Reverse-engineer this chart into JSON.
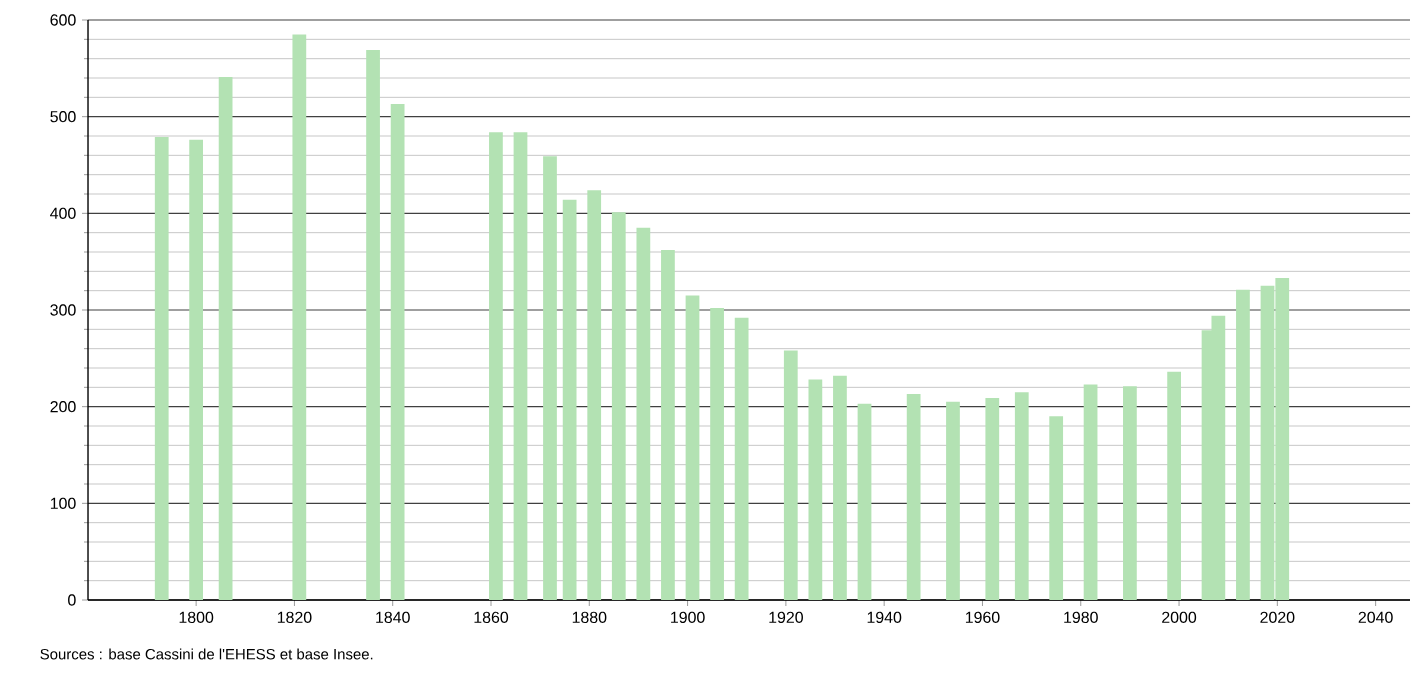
{
  "chart_data": {
    "type": "bar",
    "color": "#b3e2b3",
    "x": [
      1793,
      1800,
      1806,
      1821,
      1836,
      1841,
      1861,
      1866,
      1872,
      1876,
      1881,
      1886,
      1891,
      1896,
      1901,
      1906,
      1911,
      1921,
      1926,
      1931,
      1936,
      1946,
      1954,
      1962,
      1968,
      1975,
      1982,
      1990,
      1999,
      2006,
      2008,
      2013,
      2018,
      2021
    ],
    "values": [
      479,
      476,
      541,
      585,
      569,
      513,
      484,
      484,
      459,
      414,
      424,
      401,
      385,
      362,
      315,
      302,
      292,
      258,
      228,
      232,
      203,
      213,
      205,
      209,
      215,
      190,
      223,
      221,
      236,
      279,
      294,
      321,
      325,
      333
    ],
    "xlim": [
      1778,
      2047
    ],
    "xticks": [
      1800,
      1820,
      1840,
      1860,
      1880,
      1900,
      1920,
      1940,
      1960,
      1980,
      2000,
      2020,
      2040
    ],
    "ylim": [
      0,
      600
    ],
    "yticks": [
      0,
      100,
      200,
      300,
      400,
      500,
      600
    ],
    "grid": true,
    "annotations": [
      "Sources : base Cassini de l'EHESS et base Insee."
    ]
  }
}
